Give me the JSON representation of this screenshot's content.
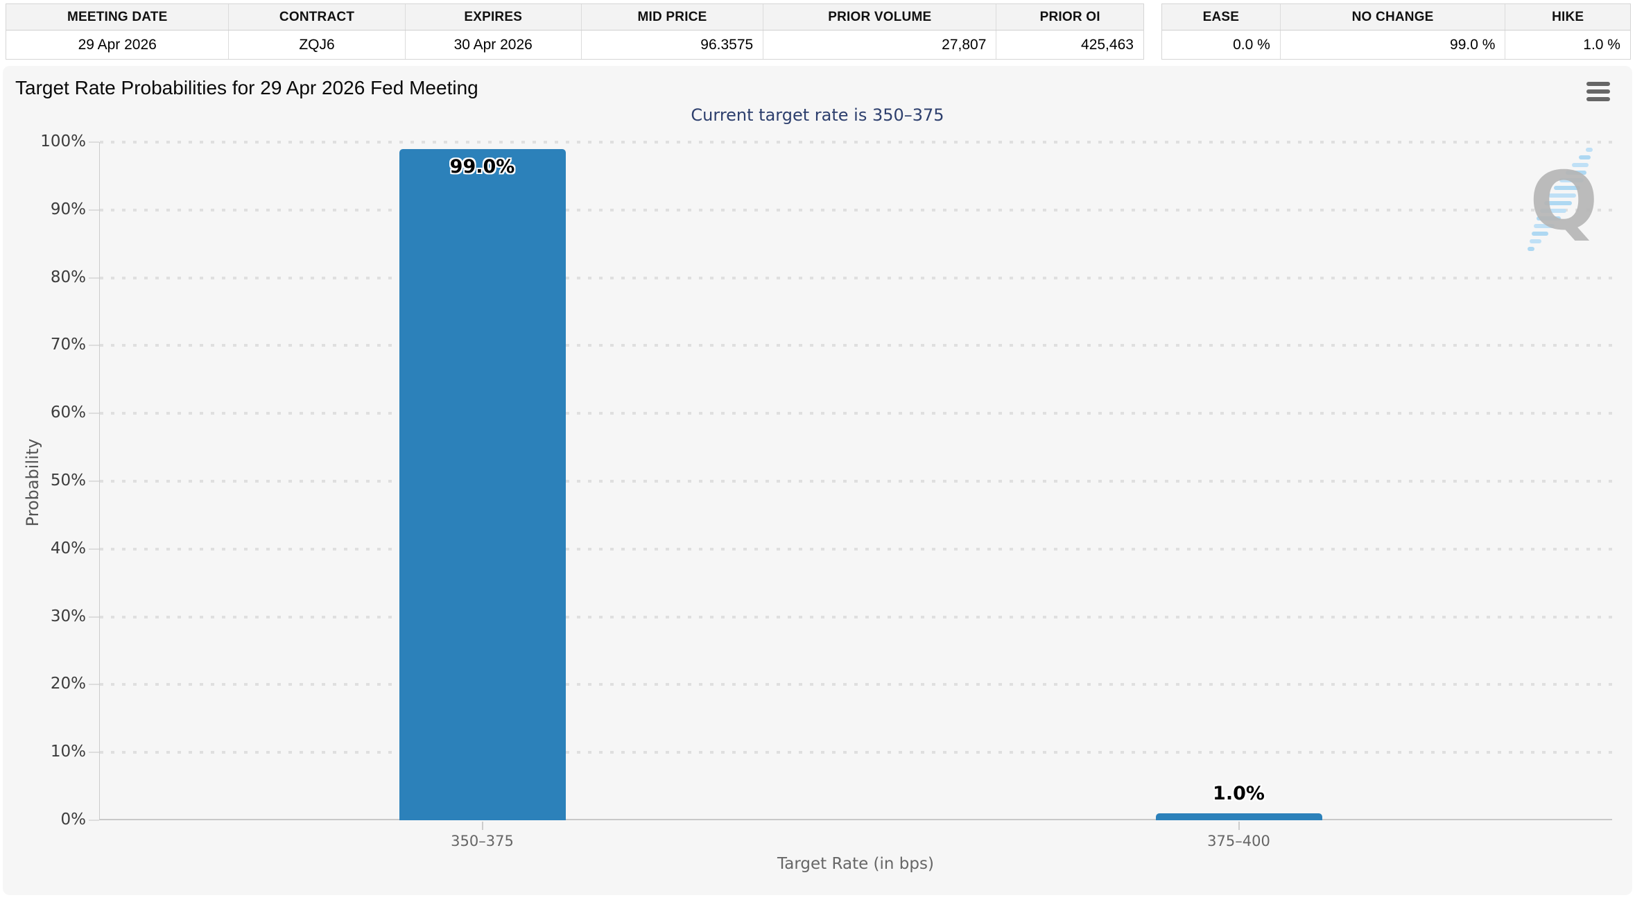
{
  "meeting_table": {
    "headers": [
      "MEETING DATE",
      "CONTRACT",
      "EXPIRES",
      "MID PRICE",
      "PRIOR VOLUME",
      "PRIOR OI"
    ],
    "values": [
      "29 Apr 2026",
      "ZQJ6",
      "30 Apr 2026",
      "96.3575",
      "27,807",
      "425,463"
    ]
  },
  "probability_table": {
    "headers": [
      "EASE",
      "NO CHANGE",
      "HIKE"
    ],
    "values": [
      "0.0 %",
      "99.0 %",
      "1.0 %"
    ]
  },
  "chart_data": {
    "type": "bar",
    "title": "Target Rate Probabilities for 29 Apr 2026 Fed Meeting",
    "subtitle": "Current target rate is 350–375",
    "categories": [
      "350–375",
      "375–400"
    ],
    "values": [
      99.0,
      1.0
    ],
    "data_labels": [
      "99.0%",
      "1.0%"
    ],
    "xlabel": "Target Rate (in bps)",
    "ylabel": "Probability",
    "ylim": [
      0,
      100
    ],
    "ytick_step": 10,
    "ytick_labels": [
      "0%",
      "10%",
      "20%",
      "30%",
      "40%",
      "50%",
      "60%",
      "70%",
      "80%",
      "90%",
      "100%"
    ],
    "grid": "dotted-horizontal",
    "legend": "none",
    "bar_color": "#2c81ba",
    "subtitle_color": "#2d3f6d",
    "watermark_letter": "Q",
    "watermark_blue": "#bfe0f6"
  }
}
